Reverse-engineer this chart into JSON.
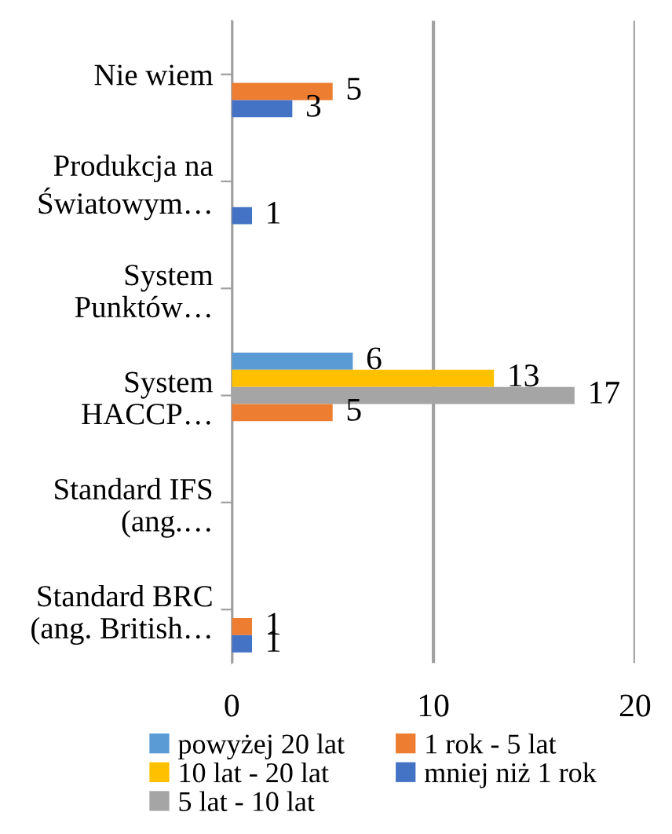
{
  "chart_data": {
    "type": "bar",
    "orientation": "horizontal",
    "categories": [
      "Nie wiem",
      "Produkcja na\nŚwiatowym…",
      "System\nPunktów…",
      "System\nHACCP…",
      "Standard IFS\n(ang.…",
      "Standard BRC\n(ang. British…"
    ],
    "series": [
      {
        "name": "powyżej 20 lat",
        "color": "#5b9bd5",
        "values": [
          0,
          0,
          0,
          6,
          0,
          0
        ],
        "value_labels": [
          null,
          null,
          null,
          "6",
          null,
          null
        ]
      },
      {
        "name": "10 lat - 20 lat",
        "color": "#ffc000",
        "values": [
          0,
          0,
          0,
          13,
          0,
          0
        ],
        "value_labels": [
          null,
          null,
          null,
          "13",
          null,
          null
        ]
      },
      {
        "name": "5 lat - 10 lat",
        "color": "#a5a5a5",
        "values": [
          0,
          0,
          0,
          17,
          0,
          0
        ],
        "value_labels": [
          null,
          null,
          null,
          "17",
          null,
          null
        ]
      },
      {
        "name": "1 rok - 5 lat",
        "color": "#ed7d31",
        "values": [
          5,
          0,
          0,
          5,
          0,
          1
        ],
        "value_labels": [
          "5",
          null,
          null,
          "5",
          null,
          "1"
        ]
      },
      {
        "name": "mniej niż 1 rok",
        "color": "#4472c4",
        "values": [
          3,
          1,
          0,
          0,
          0,
          1
        ],
        "value_labels": [
          "3",
          "1",
          null,
          null,
          null,
          "1"
        ]
      }
    ],
    "xlim": [
      0,
      20
    ],
    "xticks": [
      0,
      10,
      20
    ],
    "grid": "x",
    "legend": "bottom"
  }
}
